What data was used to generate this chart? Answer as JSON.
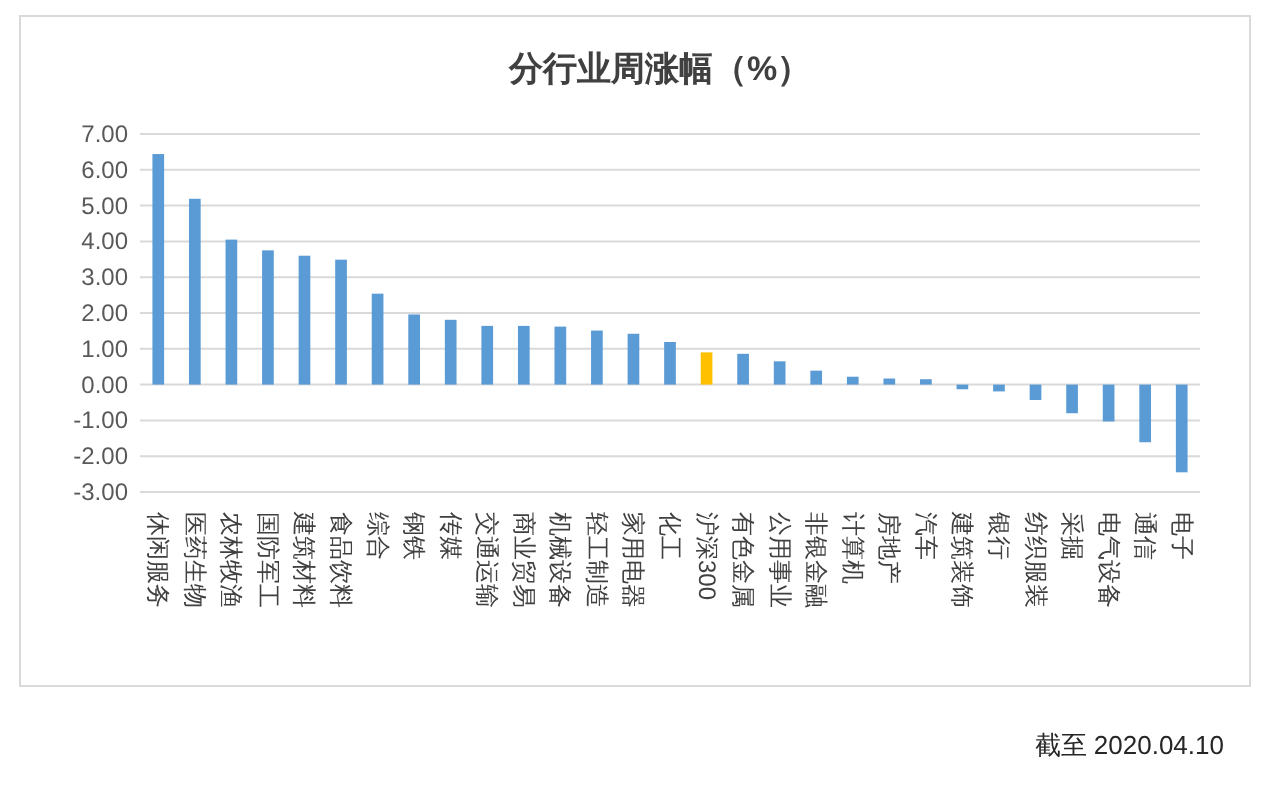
{
  "chart_data": {
    "type": "bar",
    "title": "分行业周涨幅（%）",
    "categories": [
      "休闲服务",
      "医药生物",
      "农林牧渔",
      "国防军工",
      "建筑材料",
      "食品饮料",
      "综合",
      "钢铁",
      "传媒",
      "交通运输",
      "商业贸易",
      "机械设备",
      "轻工制造",
      "家用电器",
      "化工",
      "沪深300",
      "有色金属",
      "公用事业",
      "非银金融",
      "计算机",
      "房地产",
      "汽车",
      "建筑装饰",
      "银行",
      "纺织服装",
      "采掘",
      "电气设备",
      "通信",
      "电子"
    ],
    "values": [
      6.44,
      5.19,
      4.05,
      3.75,
      3.6,
      3.49,
      2.54,
      1.96,
      1.81,
      1.64,
      1.64,
      1.62,
      1.51,
      1.42,
      1.19,
      0.9,
      0.86,
      0.65,
      0.39,
      0.22,
      0.17,
      0.15,
      -0.13,
      -0.19,
      -0.43,
      -0.8,
      -1.03,
      -1.61,
      -2.45
    ],
    "colors": [
      "#5b9bd5",
      "#5b9bd5",
      "#5b9bd5",
      "#5b9bd5",
      "#5b9bd5",
      "#5b9bd5",
      "#5b9bd5",
      "#5b9bd5",
      "#5b9bd5",
      "#5b9bd5",
      "#5b9bd5",
      "#5b9bd5",
      "#5b9bd5",
      "#5b9bd5",
      "#5b9bd5",
      "#ffc000",
      "#5b9bd5",
      "#5b9bd5",
      "#5b9bd5",
      "#5b9bd5",
      "#5b9bd5",
      "#5b9bd5",
      "#5b9bd5",
      "#5b9bd5",
      "#5b9bd5",
      "#5b9bd5",
      "#5b9bd5",
      "#5b9bd5",
      "#5b9bd5"
    ],
    "ylim": [
      -3,
      7
    ],
    "yticks": [
      {
        "value": 7,
        "label": "7.00"
      },
      {
        "value": 6,
        "label": "6.00"
      },
      {
        "value": 5,
        "label": "5.00"
      },
      {
        "value": 4,
        "label": "4.00"
      },
      {
        "value": 3,
        "label": "3.00"
      },
      {
        "value": 2,
        "label": "2.00"
      },
      {
        "value": 1,
        "label": "1.00"
      },
      {
        "value": 0,
        "label": "0.00"
      },
      {
        "value": -1,
        "label": "-1.00"
      },
      {
        "value": -2,
        "label": "-2.00"
      },
      {
        "value": -3,
        "label": "-3.00"
      }
    ],
    "grid": "y",
    "annotations": [
      "截至 2020.04.10"
    ]
  }
}
